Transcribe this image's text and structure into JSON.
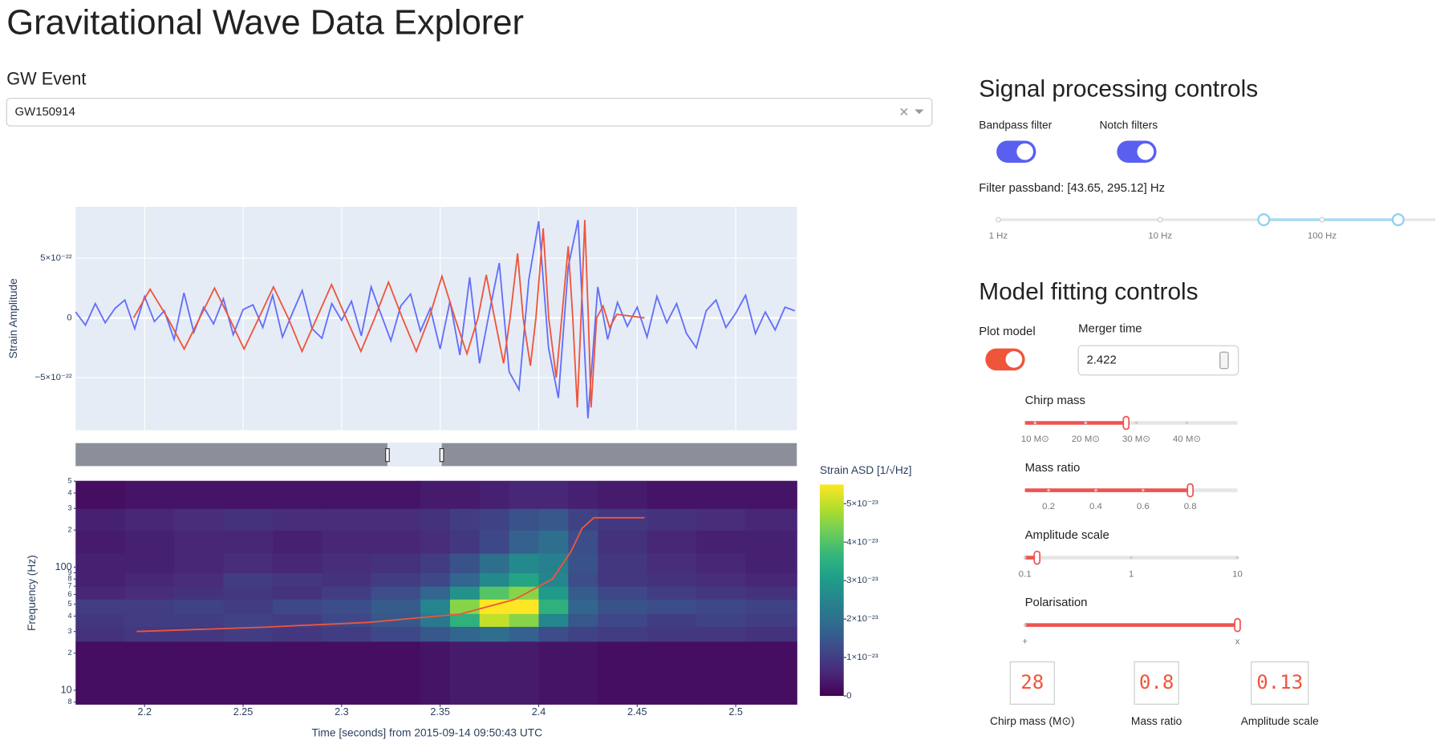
{
  "title": "Gravitational Wave Data Explorer",
  "event_selector": {
    "label": "GW Event",
    "value": "GW150914"
  },
  "chart_data": [
    {
      "type": "line",
      "ylabel": "Strain Amplitude",
      "grid": true,
      "xlim": [
        2.165,
        2.531
      ],
      "xticks": [
        2.2,
        2.25,
        2.3,
        2.35,
        2.4,
        2.45,
        2.5
      ],
      "ylim": [
        -9.4e-22,
        9.3e-22
      ],
      "yticks": [
        {
          "value": -5e-22,
          "label": "−5×10⁻²²"
        },
        0,
        {
          "value": 5e-22,
          "label": "5×10⁻²²"
        }
      ],
      "series": [
        {
          "color": "#636efa",
          "x": [
            2.165,
            2.17,
            2.175,
            2.18,
            2.185,
            2.19,
            2.195,
            2.2,
            2.205,
            2.21,
            2.215,
            2.22,
            2.225,
            2.23,
            2.235,
            2.24,
            2.245,
            2.25,
            2.255,
            2.26,
            2.265,
            2.27,
            2.275,
            2.28,
            2.285,
            2.29,
            2.295,
            2.3,
            2.305,
            2.31,
            2.315,
            2.32,
            2.325,
            2.33,
            2.335,
            2.34,
            2.345,
            2.35,
            2.355,
            2.36,
            2.365,
            2.37,
            2.375,
            2.38,
            2.385,
            2.39,
            2.395,
            2.4,
            2.405,
            2.41,
            2.415,
            2.42,
            2.425,
            2.43,
            2.435,
            2.44,
            2.445,
            2.45,
            2.455,
            2.46,
            2.465,
            2.47,
            2.475,
            2.48,
            2.485,
            2.49,
            2.495,
            2.5,
            2.505,
            2.51,
            2.515,
            2.52,
            2.525,
            2.53
          ],
          "values": [
            5e-23,
            -6e-23,
            1.2e-22,
            -4e-23,
            8e-23,
            1.5e-22,
            -9e-23,
            1.8e-22,
            -3e-23,
            6e-23,
            -1.8e-22,
            2.1e-22,
            -1.2e-22,
            9e-23,
            -5e-23,
            1.6e-22,
            -1.4e-22,
            7e-23,
            1.1e-22,
            -8e-23,
            1.9e-22,
            -1.6e-22,
            4e-23,
            2.3e-22,
            -9e-23,
            -1.7e-22,
            1.2e-22,
            -2e-23,
            1.4e-22,
            -1.5e-22,
            2.6e-22,
            3e-23,
            -1.9e-22,
            1e-22,
            2e-22,
            -1.1e-22,
            8e-23,
            -2.6e-22,
            1.4e-22,
            -3.1e-22,
            3.4e-22,
            -3.8e-22,
            5e-23,
            4.6e-22,
            -4.5e-22,
            -6e-22,
            3.2e-22,
            8.1e-22,
            -2.5e-22,
            -6.7e-22,
            4.3e-22,
            8.2e-22,
            -8.4e-22,
            2.6e-22,
            -1.8e-22,
            1.3e-22,
            -7e-23,
            9e-23,
            -1.6e-22,
            1.8e-22,
            -4e-23,
            1.2e-22,
            -1.3e-22,
            -2.5e-22,
            6e-23,
            1.5e-22,
            -8e-23,
            4e-23,
            1.9e-22,
            -1.3e-22,
            5e-23,
            -1e-22,
            9e-23,
            6e-23
          ]
        },
        {
          "color": "#ef553b",
          "x": [
            2.1944,
            2.2028,
            2.2117,
            2.2201,
            2.228,
            2.2355,
            2.243,
            2.2505,
            2.258,
            2.2654,
            2.2729,
            2.2799,
            2.2874,
            2.2949,
            2.3023,
            2.3098,
            2.3168,
            2.3238,
            2.3308,
            2.3379,
            2.3444,
            2.3509,
            2.3575,
            2.3636,
            2.3692,
            2.3734,
            2.3776,
            2.3822,
            2.3855,
            2.3893,
            2.3921,
            2.3958,
            2.3986,
            2.4023,
            2.4051,
            2.4089,
            2.4117,
            2.415,
            2.4173,
            2.4196,
            2.4215,
            2.4234,
            2.4252,
            2.4266,
            2.4294,
            2.4327,
            2.436,
            2.4397,
            2.4537
          ],
          "values": [
            0,
            2.4e-22,
            0,
            -2.6e-22,
            0,
            2.5e-22,
            0,
            -2.6e-22,
            0,
            2.6e-22,
            0,
            -2.8e-22,
            0,
            2.8e-22,
            0,
            -2.8e-22,
            0,
            3e-22,
            0,
            -2.8e-22,
            0,
            3.5e-22,
            0,
            -3e-22,
            0,
            3.6e-22,
            0,
            -3.8e-22,
            0,
            5.4e-22,
            0,
            -4e-22,
            0,
            7.5e-22,
            0,
            -5e-22,
            0,
            6e-22,
            0,
            -7.5e-22,
            0,
            8.2e-22,
            0,
            -7.5e-22,
            0,
            1e-22,
            -8e-23,
            3e-23,
            0
          ]
        }
      ]
    },
    {
      "type": "heatmap",
      "xlabel": "Time [seconds] from 2015-09-14 09:50:43 UTC",
      "ylabel": "Frequency (Hz)",
      "log_y": true,
      "colorscale": "Viridis",
      "xlim": [
        2.165,
        2.531
      ],
      "xticks": [
        2.2,
        2.25,
        2.3,
        2.35,
        2.4,
        2.45,
        2.5
      ],
      "ylim": [
        7.7,
        503
      ],
      "yticks": [
        {
          "value": 8,
          "label": "8"
        },
        10,
        {
          "value": 20,
          "label": "2"
        },
        {
          "value": 30,
          "label": "3"
        },
        {
          "value": 40,
          "label": "4"
        },
        {
          "value": 50,
          "label": "5"
        },
        {
          "value": 60,
          "label": "6"
        },
        {
          "value": 70,
          "label": "7"
        },
        {
          "value": 80,
          "label": "8"
        },
        {
          "value": 90,
          "label": "9"
        },
        100,
        {
          "value": 200,
          "label": "2"
        },
        {
          "value": 300,
          "label": "3"
        },
        {
          "value": 400,
          "label": "4"
        },
        {
          "value": 500,
          "label": "5"
        }
      ],
      "xbins": [
        2.165,
        2.19,
        2.215,
        2.24,
        2.265,
        2.29,
        2.315,
        2.34,
        2.355,
        2.37,
        2.385,
        2.4,
        2.415,
        2.43,
        2.455,
        2.48,
        2.505,
        2.531
      ],
      "ybins": [
        7.7,
        25,
        33,
        42,
        55,
        70,
        90,
        130,
        200,
        300,
        503
      ],
      "z": [
        [
          2e-24,
          2e-24,
          2e-24,
          2e-24,
          2e-24,
          2e-24,
          2e-24,
          3e-24,
          4e-24,
          4e-24,
          4e-24,
          3e-24,
          3e-24,
          2e-24,
          2e-24,
          2e-24,
          2e-24
        ],
        [
          8e-24,
          9e-24,
          9e-24,
          1e-23,
          9e-24,
          1e-23,
          1.2e-23,
          1.5e-23,
          1.8e-23,
          2e-23,
          1.7e-23,
          1.3e-23,
          1.1e-23,
          1e-23,
          9e-24,
          9e-24,
          8e-24
        ],
        [
          9e-24,
          1e-23,
          1e-23,
          1.1e-23,
          1e-23,
          1.2e-23,
          1.5e-23,
          2.2e-23,
          3.5e-23,
          5e-23,
          4.5e-23,
          2.5e-23,
          1.5e-23,
          1.2e-23,
          1e-23,
          1.1e-23,
          1e-23
        ],
        [
          1e-23,
          1e-23,
          1.1e-23,
          1e-23,
          1.2e-23,
          1.3e-23,
          1.6e-23,
          2.5e-23,
          4.5e-23,
          5.6e-23,
          5.8e-23,
          3.5e-23,
          1.8e-23,
          1.4e-23,
          1.3e-23,
          1.2e-23,
          1.1e-23
        ],
        [
          6e-24,
          7e-24,
          8e-24,
          9e-24,
          8e-24,
          1e-23,
          1.3e-23,
          1.8e-23,
          2.8e-23,
          4e-23,
          4.5e-23,
          3e-23,
          1.6e-23,
          1.2e-23,
          1e-23,
          9e-24,
          8e-24
        ],
        [
          5e-24,
          6e-24,
          7e-24,
          1e-23,
          9e-24,
          8e-24,
          1e-23,
          1.2e-23,
          1.8e-23,
          2.6e-23,
          3.2e-23,
          2.5e-23,
          1.3e-23,
          9e-24,
          8e-24,
          7e-24,
          6e-24
        ],
        [
          5e-24,
          5e-24,
          6e-24,
          7e-24,
          6e-24,
          7e-24,
          8e-24,
          1e-23,
          1.4e-23,
          2e-23,
          2.6e-23,
          2.4e-23,
          1.4e-23,
          9e-24,
          7e-24,
          6e-24,
          5e-24
        ],
        [
          4e-24,
          5e-24,
          6e-24,
          6e-24,
          5e-24,
          6e-24,
          6e-24,
          7e-24,
          9e-24,
          1.2e-23,
          1.7e-23,
          2e-23,
          1.3e-23,
          8e-24,
          6e-24,
          5e-24,
          5e-24
        ],
        [
          5e-24,
          6e-24,
          7e-24,
          8e-24,
          7e-24,
          7e-24,
          7e-24,
          8e-24,
          1e-23,
          1.1e-23,
          1.4e-23,
          1.5e-23,
          1.1e-23,
          9e-24,
          8e-24,
          7e-24,
          6e-24
        ],
        [
          2e-24,
          3e-24,
          3e-24,
          3e-24,
          3e-24,
          3e-24,
          3e-24,
          4e-24,
          4e-24,
          5e-24,
          6e-24,
          6e-24,
          5e-24,
          4e-24,
          3e-24,
          3e-24,
          3e-24
        ]
      ],
      "zlim": [
        0,
        5.5e-23
      ],
      "colorbar_title": "Strain ASD [1/√Hz]",
      "zticks": [
        0,
        {
          "value": 1e-23,
          "label": "1×10⁻²³"
        },
        {
          "value": 2e-23,
          "label": "2×10⁻²³"
        },
        {
          "value": 3e-23,
          "label": "3×10⁻²³"
        },
        {
          "value": 4e-23,
          "label": "4×10⁻²³"
        },
        {
          "value": 5e-23,
          "label": "5×10⁻²³"
        }
      ],
      "series": [
        {
          "color": "#ef553b",
          "x": [
            2.196,
            2.26,
            2.3136,
            2.3603,
            2.388,
            2.407,
            2.4164,
            2.422,
            2.428,
            2.4537
          ],
          "values": [
            30,
            32.5,
            35.6,
            41.6,
            54.8,
            80,
            134,
            206,
            252,
            252
          ]
        }
      ]
    }
  ],
  "signal_processing": {
    "title": "Signal processing controls",
    "toggles": [
      {
        "label": "Bandpass filter",
        "on": true,
        "color": "#5a5ff0"
      },
      {
        "label": "Notch filters",
        "on": true,
        "color": "#5a5ff0"
      }
    ],
    "passband": {
      "label": "Filter passband: [43.65, 295.12] Hz",
      "log": true,
      "range": [
        1,
        500
      ],
      "value": [
        43.65,
        295.12
      ],
      "color": "#a6dcef",
      "marks": [
        {
          "value": 1,
          "label": "1 Hz"
        },
        {
          "value": 10,
          "label": "10 Hz"
        },
        {
          "value": 100,
          "label": "100 Hz"
        }
      ]
    }
  },
  "model_fitting": {
    "title": "Model fitting controls",
    "plot_model": {
      "label": "Plot model",
      "on": true,
      "color": "#ef553b"
    },
    "merger_time": {
      "label": "Merger time",
      "value": 2.422
    },
    "sliders": [
      {
        "label": "Chirp mass",
        "range": [
          8,
          50
        ],
        "value": 28,
        "color": "#ef5350",
        "marks": [
          {
            "value": 10,
            "label": "10 M⊙"
          },
          {
            "value": 20,
            "label": "20 M⊙"
          },
          {
            "value": 30,
            "label": "30 M⊙"
          },
          {
            "value": 40,
            "label": "40 M⊙"
          }
        ]
      },
      {
        "label": "Mass ratio",
        "range": [
          0.1,
          1
        ],
        "value": 0.8,
        "color": "#ef5350",
        "marks": [
          0.2,
          0.4,
          0.6,
          0.8
        ]
      },
      {
        "label": "Amplitude scale",
        "log": true,
        "range": [
          0.1,
          10
        ],
        "value": 0.13,
        "color": "#ef5350",
        "marks": [
          0.1,
          1,
          10
        ]
      },
      {
        "label": "Polarisation",
        "range": [
          0,
          1
        ],
        "value": 1,
        "color": "#ef5350",
        "marks": [
          {
            "value": 0,
            "label": "+"
          },
          {
            "value": 1,
            "label": "x"
          }
        ]
      }
    ],
    "displays": [
      "Chirp mass (M⊙)",
      "Mass ratio",
      "Amplitude scale"
    ]
  }
}
